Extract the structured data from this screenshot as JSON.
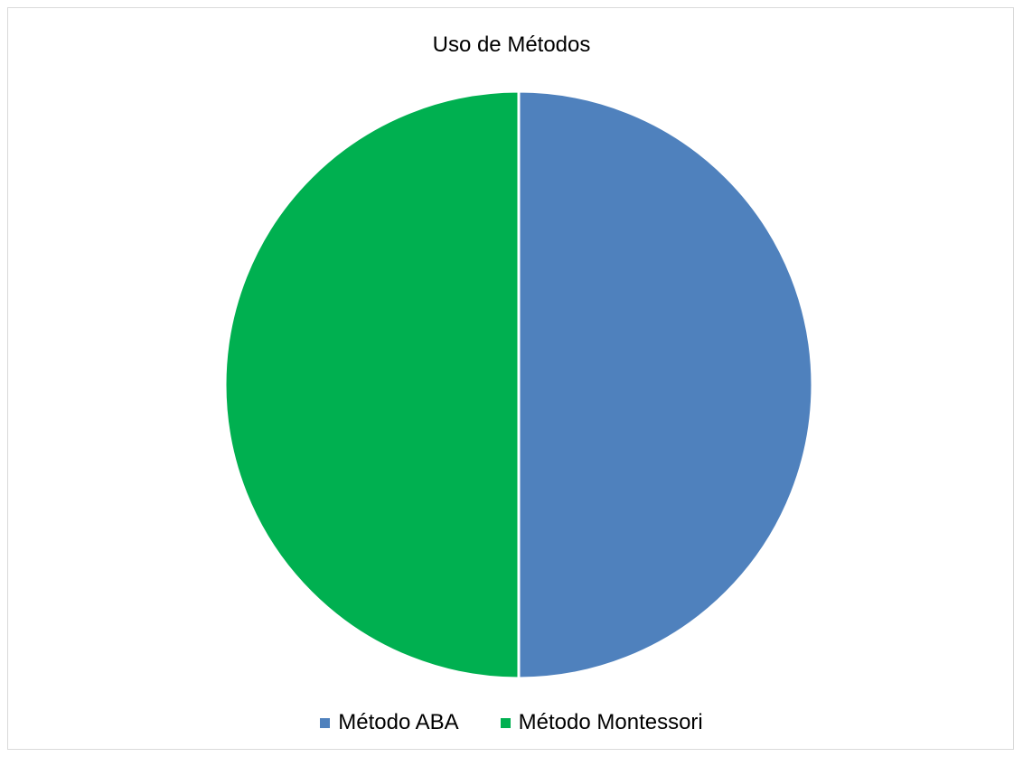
{
  "chart_data": {
    "type": "pie",
    "title": "Uso de Métodos",
    "categories": [
      "Método ABA",
      "Método Montessori"
    ],
    "values": [
      50,
      50
    ],
    "colors": [
      "#4f81bd",
      "#00b050"
    ],
    "legend_position": "bottom",
    "start_angle": "top",
    "direction": "clockwise"
  }
}
